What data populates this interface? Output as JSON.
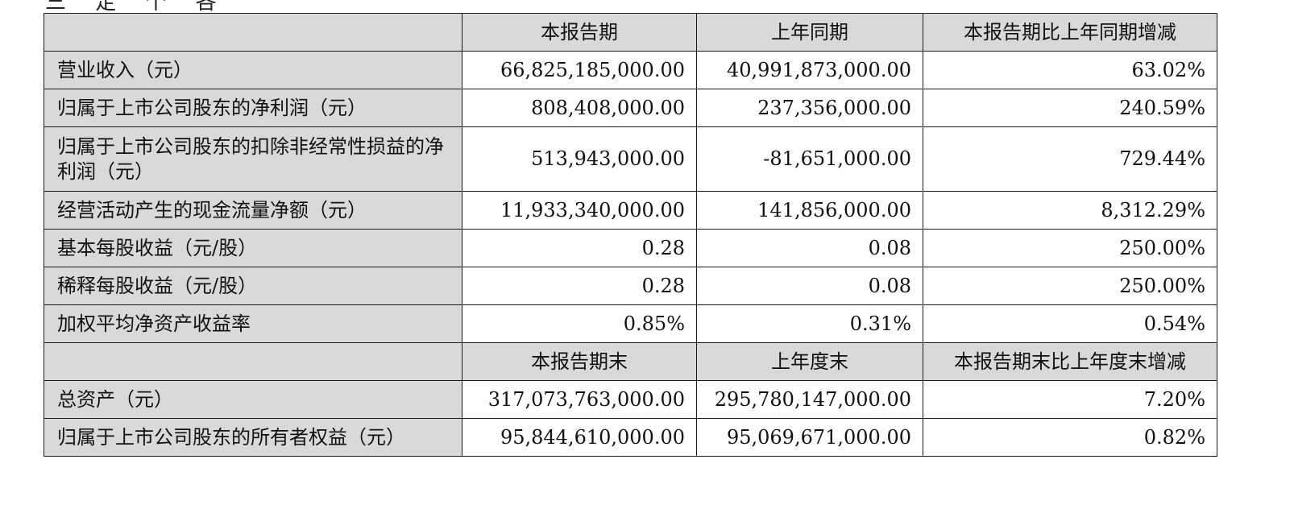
{
  "top_fragment": "三 定 个 各",
  "table": {
    "headers_1": [
      "",
      "本报告期",
      "上年同期",
      "本报告期比上年同期增减"
    ],
    "rows_1": [
      {
        "label": "营业收入（元）",
        "values": [
          "66,825,185,000.00",
          "40,991,873,000.00",
          "63.02%"
        ]
      },
      {
        "label": "归属于上市公司股东的净利润（元）",
        "values": [
          "808,408,000.00",
          "237,356,000.00",
          "240.59%"
        ]
      },
      {
        "label": "归属于上市公司股东的扣除非经常性损益的净利润（元）",
        "values": [
          "513,943,000.00",
          "-81,651,000.00",
          "729.44%"
        ]
      },
      {
        "label": "经营活动产生的现金流量净额（元）",
        "values": [
          "11,933,340,000.00",
          "141,856,000.00",
          "8,312.29%"
        ]
      },
      {
        "label": "基本每股收益（元/股）",
        "values": [
          "0.28",
          "0.08",
          "250.00%"
        ]
      },
      {
        "label": "稀释每股收益（元/股）",
        "values": [
          "0.28",
          "0.08",
          "250.00%"
        ]
      },
      {
        "label": "加权平均净资产收益率",
        "values": [
          "0.85%",
          "0.31%",
          "0.54%"
        ]
      }
    ],
    "headers_2": [
      "",
      "本报告期末",
      "上年度末",
      "本报告期末比上年度末增减"
    ],
    "rows_2": [
      {
        "label": "总资产（元）",
        "values": [
          "317,073,763,000.00",
          "295,780,147,000.00",
          "7.20%"
        ]
      },
      {
        "label": "归属于上市公司股东的所有者权益（元）",
        "values": [
          "95,844,610,000.00",
          "95,069,671,000.00",
          "0.82%"
        ]
      }
    ]
  }
}
